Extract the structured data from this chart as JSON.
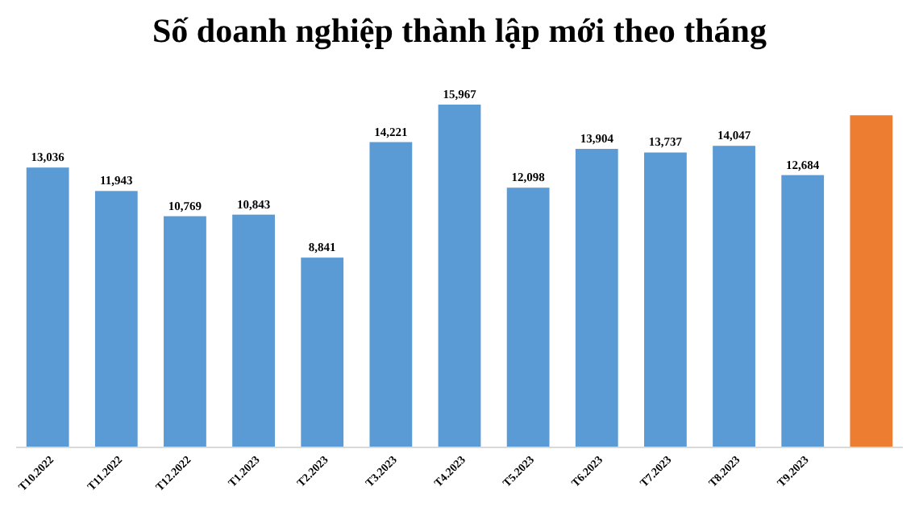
{
  "chart_data": {
    "type": "bar",
    "title": "Số doanh nghiệp thành lập mới theo tháng",
    "categories": [
      "T10.2022",
      "T11.2022",
      "T12.2022",
      "T1.2023",
      "T2.2023",
      "T3.2023",
      "T4.2023",
      "T5.2023",
      "T6.2023",
      "T7.2023",
      "T8.2023",
      "T9.2023",
      null
    ],
    "values": [
      13036,
      11943,
      10769,
      10843,
      8841,
      14221,
      15967,
      12098,
      13904,
      13737,
      14047,
      12684,
      15470
    ],
    "colors": [
      "#5b9bd5",
      "#5b9bd5",
      "#5b9bd5",
      "#5b9bd5",
      "#5b9bd5",
      "#5b9bd5",
      "#5b9bd5",
      "#5b9bd5",
      "#5b9bd5",
      "#5b9bd5",
      "#5b9bd5",
      "#5b9bd5",
      "#ed7d31"
    ],
    "value_labels": [
      "13,036",
      "11,943",
      "10,769",
      "10,843",
      "8,841",
      "14,221",
      "15,967",
      "12,098",
      "13,904",
      "13,737",
      "14,047",
      "12,684",
      null
    ],
    "relative": false
  }
}
